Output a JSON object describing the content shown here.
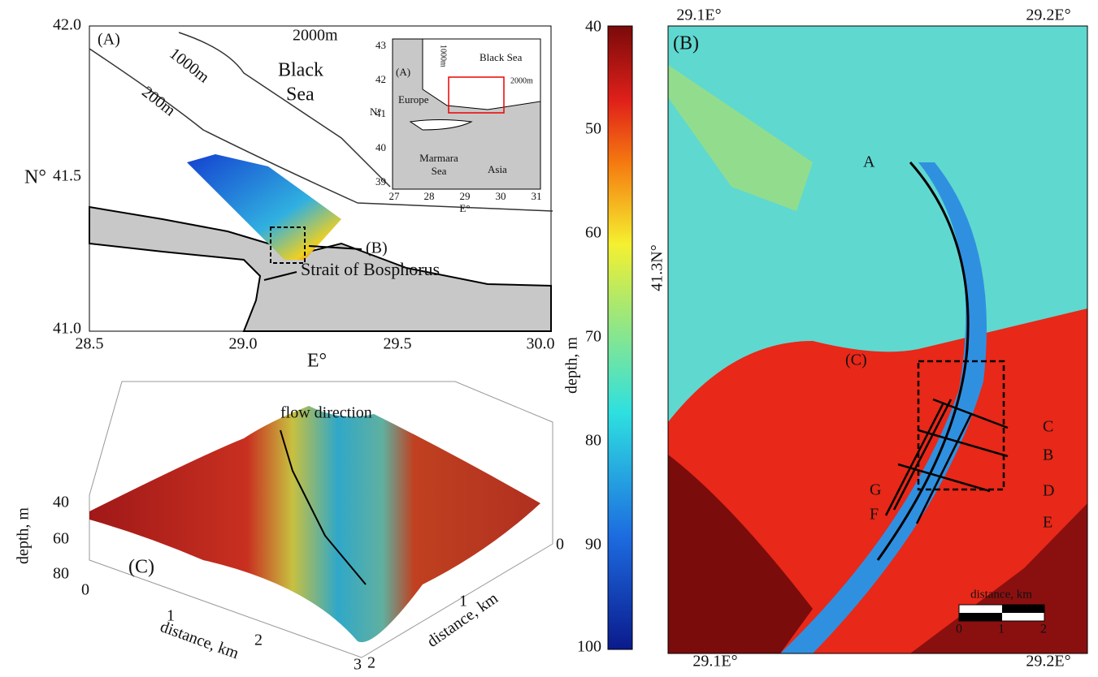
{
  "panel_a": {
    "label": "(A)",
    "contour_1000": "1000m",
    "contour_2000": "2000m",
    "contour_200": "200m",
    "sea_line1": "Black",
    "sea_line2": "Sea",
    "box_label": "(B)",
    "strait": "Strait of Bosphorus",
    "y_title": "N°",
    "x_title": "E°",
    "yticks": [
      "42.0",
      "41.5",
      "41.0"
    ],
    "xticks": [
      "28.5",
      "29.0",
      "29.5",
      "30.0"
    ],
    "inset": {
      "yticks": [
        "43",
        "42",
        "41",
        "40",
        "39"
      ],
      "xticks": [
        "27",
        "28",
        "29",
        "30",
        "31"
      ],
      "a_label": "(A)",
      "europe": "Europe",
      "black_sea": "Black Sea",
      "c1000": "1000m",
      "c2000": "2000m",
      "marmara1": "Marmara",
      "marmara2": "Sea",
      "asia": "Asia",
      "y_title": "N°",
      "x_title": "E°"
    }
  },
  "colorbar": {
    "title": "depth, m",
    "ticks": [
      "40",
      "50",
      "60",
      "70",
      "80",
      "90",
      "100"
    ]
  },
  "panel_b": {
    "label": "(B)",
    "top_ticks": [
      "29.1E°",
      "29.2E°"
    ],
    "bottom_ticks": [
      "29.1E°",
      "29.2E°"
    ],
    "left_tick": "41.3N°",
    "sections": [
      "A",
      "B",
      "C",
      "D",
      "E",
      "F",
      "G"
    ],
    "box_label": "(C)",
    "scale_title": "distance, km",
    "scale_ticks": [
      "0",
      "1",
      "2"
    ]
  },
  "panel_c": {
    "label": "(C)",
    "flow": "flow direction",
    "z_title": "depth, m",
    "zticks": [
      "40",
      "60",
      "80"
    ],
    "x_title": "distance, km",
    "xticks": [
      "0",
      "1",
      "2",
      "3"
    ],
    "y_title": "distance, km",
    "yticks": [
      "0",
      "1",
      "2"
    ]
  }
}
